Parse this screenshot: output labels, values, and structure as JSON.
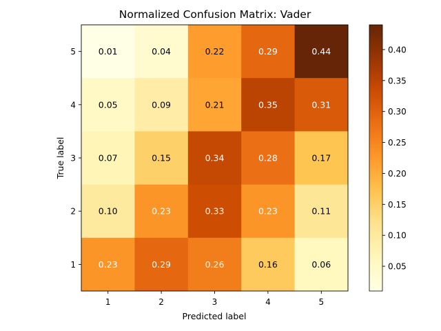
{
  "chart_data": {
    "type": "heatmap",
    "title": "Normalized Confusion Matrix: Vader",
    "xlabel": "Predicted label",
    "ylabel": "True label",
    "x_categories": [
      "1",
      "2",
      "3",
      "4",
      "5"
    ],
    "y_categories": [
      "5",
      "4",
      "3",
      "2",
      "1"
    ],
    "values": [
      [
        0.01,
        0.04,
        0.22,
        0.29,
        0.44
      ],
      [
        0.05,
        0.09,
        0.21,
        0.35,
        0.31
      ],
      [
        0.07,
        0.15,
        0.34,
        0.28,
        0.17
      ],
      [
        0.1,
        0.23,
        0.33,
        0.23,
        0.11
      ],
      [
        0.23,
        0.29,
        0.26,
        0.16,
        0.06
      ]
    ],
    "value_labels": [
      [
        "0.01",
        "0.04",
        "0.22",
        "0.29",
        "0.44"
      ],
      [
        "0.05",
        "0.09",
        "0.21",
        "0.35",
        "0.31"
      ],
      [
        "0.07",
        "0.15",
        "0.34",
        "0.28",
        "0.17"
      ],
      [
        "0.10",
        "0.23",
        "0.33",
        "0.23",
        "0.11"
      ],
      [
        "0.23",
        "0.29",
        "0.26",
        "0.16",
        "0.06"
      ]
    ],
    "colormap": "YlOrBr",
    "colorbar": {
      "range": [
        0.01,
        0.44
      ],
      "ticks": [
        0.05,
        0.1,
        0.15,
        0.2,
        0.25,
        0.3,
        0.35,
        0.4
      ],
      "tick_labels": [
        "0.05",
        "0.10",
        "0.15",
        "0.20",
        "0.25",
        "0.30",
        "0.35",
        "0.40"
      ]
    },
    "grid": false
  }
}
